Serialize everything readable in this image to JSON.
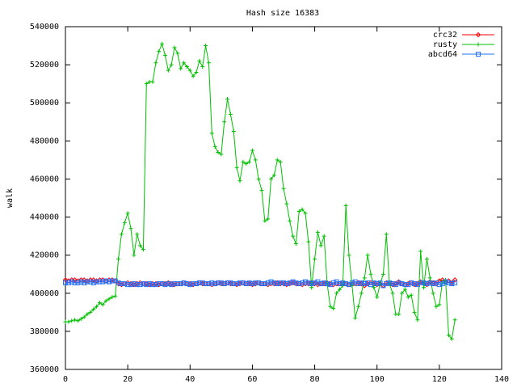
{
  "chart_data": {
    "type": "line",
    "title": "Hash size 16383",
    "y_label": "walk",
    "x": [
      0,
      1,
      2,
      3,
      4,
      5,
      6,
      7,
      8,
      9,
      10,
      11,
      12,
      13,
      14,
      15,
      16,
      17,
      18,
      19,
      20,
      21,
      22,
      23,
      24,
      25,
      26,
      27,
      28,
      29,
      30,
      31,
      32,
      33,
      34,
      35,
      36,
      37,
      38,
      39,
      40,
      41,
      42,
      43,
      44,
      45,
      46,
      47,
      48,
      49,
      50,
      51,
      52,
      53,
      54,
      55,
      56,
      57,
      58,
      59,
      60,
      61,
      62,
      63,
      64,
      65,
      66,
      67,
      68,
      69,
      70,
      71,
      72,
      73,
      74,
      75,
      76,
      77,
      78,
      79,
      80,
      81,
      82,
      83,
      84,
      85,
      86,
      87,
      88,
      89,
      90,
      91,
      92,
      93,
      94,
      95,
      96,
      97,
      98,
      99,
      100,
      101,
      102,
      103,
      104,
      105,
      106,
      107,
      108,
      109,
      110,
      111,
      112,
      113,
      114,
      115,
      116,
      117,
      118,
      119,
      120,
      121,
      122,
      123,
      124,
      125
    ],
    "series": [
      {
        "name": "crc32",
        "color": "#ff0000",
        "marker": "diamond",
        "values": [
          407000,
          406500,
          407000,
          407000,
          406500,
          407000,
          407000,
          406500,
          407000,
          407000,
          406500,
          407000,
          407000,
          406500,
          407000,
          407000,
          406500,
          405000,
          404500,
          405000,
          405500,
          405000,
          404500,
          405000,
          405500,
          405000,
          405000,
          404500,
          405000,
          405000,
          404500,
          405000,
          405000,
          405500,
          405000,
          404500,
          405000,
          405000,
          405500,
          405000,
          405000,
          404500,
          405000,
          405500,
          405000,
          405000,
          405000,
          404500,
          405000,
          405500,
          405000,
          405000,
          405500,
          405000,
          405000,
          404500,
          405000,
          405500,
          405000,
          405000,
          404500,
          405000,
          405500,
          405000,
          405000,
          404500,
          405000,
          405000,
          405500,
          405000,
          405000,
          404500,
          405000,
          405500,
          405000,
          405000,
          404500,
          405000,
          405000,
          405500,
          405000,
          404500,
          405000,
          405000,
          405500,
          405000,
          404500,
          405000,
          405000,
          405500,
          405000,
          404500,
          405000,
          405000,
          405500,
          405000,
          404000,
          405000,
          405500,
          405000,
          404500,
          405000,
          404000,
          405500,
          405000,
          404500,
          405000,
          406000,
          405000,
          404500,
          405000,
          405500,
          404500,
          405000,
          406000,
          405000,
          404500,
          406000,
          405500,
          405000,
          406500,
          407000,
          406000,
          406500,
          405500,
          407000
        ]
      },
      {
        "name": "rusty",
        "color": "#00c000",
        "marker": "plus",
        "values": [
          385000,
          385000,
          385500,
          386000,
          385500,
          386500,
          387500,
          389000,
          390000,
          391500,
          393000,
          395000,
          394000,
          396000,
          397000,
          398000,
          398500,
          418000,
          431000,
          437000,
          442000,
          434000,
          420000,
          431000,
          425000,
          423000,
          510000,
          511000,
          511000,
          521000,
          527000,
          531000,
          525000,
          517000,
          520000,
          529000,
          526000,
          518000,
          521000,
          519000,
          517000,
          514000,
          516000,
          522000,
          519000,
          530000,
          521000,
          484000,
          477000,
          474000,
          473000,
          490000,
          502000,
          494000,
          485000,
          466000,
          459000,
          469000,
          468000,
          469000,
          475000,
          470000,
          460000,
          454000,
          438000,
          439000,
          460000,
          462000,
          470000,
          469000,
          455000,
          447000,
          438000,
          430000,
          426000,
          443000,
          444000,
          442000,
          427000,
          403000,
          418000,
          432000,
          425000,
          430000,
          405000,
          393000,
          392000,
          400000,
          402000,
          404000,
          446000,
          420000,
          404000,
          387000,
          393000,
          400000,
          408000,
          420000,
          410000,
          403000,
          398000,
          405000,
          410000,
          431000,
          405000,
          400000,
          389000,
          389000,
          400000,
          402000,
          398000,
          399000,
          390000,
          386000,
          422000,
          403000,
          418000,
          408000,
          400000,
          393000,
          394000,
          406000,
          407000,
          378000,
          376000,
          386000
        ]
      },
      {
        "name": "abcd64",
        "color": "#1f6fff",
        "marker": "square",
        "values": [
          405500,
          405500,
          406000,
          405500,
          405500,
          406000,
          405500,
          406000,
          406000,
          405500,
          406000,
          406000,
          406000,
          406500,
          406000,
          406500,
          406500,
          405500,
          405000,
          405000,
          404500,
          404500,
          405000,
          404500,
          404500,
          405000,
          404500,
          405000,
          404500,
          404500,
          405000,
          405000,
          404500,
          405000,
          404500,
          405000,
          405000,
          405000,
          405500,
          405000,
          404500,
          405000,
          405000,
          405500,
          405500,
          405000,
          405000,
          405500,
          405000,
          405500,
          405500,
          405000,
          405500,
          405500,
          405000,
          405000,
          405500,
          405500,
          405000,
          405500,
          405000,
          405500,
          405500,
          405000,
          405000,
          405500,
          406000,
          405500,
          405000,
          405500,
          405500,
          405000,
          405500,
          406000,
          405500,
          405000,
          405500,
          406000,
          405500,
          405000,
          405500,
          406000,
          405000,
          405500,
          405000,
          404500,
          405500,
          406000,
          405000,
          405500,
          405000,
          404500,
          405500,
          406000,
          405000,
          405500,
          405000,
          405500,
          404500,
          405500,
          405000,
          405500,
          404000,
          405000,
          405500,
          405000,
          404500,
          405500,
          405000,
          404500,
          404500,
          405500,
          405000,
          404500,
          405500,
          405500,
          405000,
          405500,
          405000,
          405500,
          404500,
          405000,
          406000,
          405500,
          405000,
          405500
        ]
      }
    ],
    "xlim": [
      0,
      140
    ],
    "xticks": [
      0,
      20,
      40,
      60,
      80,
      100,
      120,
      140
    ],
    "ylim": [
      360000,
      540000
    ],
    "yticks": [
      360000,
      380000,
      400000,
      420000,
      440000,
      460000,
      480000,
      500000,
      520000,
      540000
    ],
    "legend": "top right"
  }
}
